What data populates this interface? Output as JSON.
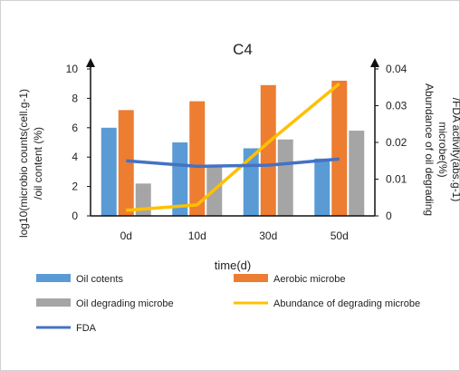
{
  "chart_data": {
    "type": "bar",
    "title": "C4",
    "categories": [
      "0d",
      "10d",
      "30d",
      "50d"
    ],
    "xlabel": "time(d)",
    "ylabel_lines": [
      "log10(microbio counts(cell.g-1)",
      "/oil content (%)"
    ],
    "y2label_lines": [
      "Abundance of oil degrading",
      "microbe(%)",
      "/FDA activity(abs.g-1)"
    ],
    "ylim": [
      0,
      10
    ],
    "y_ticks": [
      "0",
      "2",
      "4",
      "6",
      "8",
      "10"
    ],
    "y2lim": [
      0,
      0.04
    ],
    "y2_ticks": [
      "0",
      "0.01",
      "0.02",
      "0.03",
      "0.04"
    ],
    "series": [
      {
        "name": "Oil cotents",
        "kind": "bar",
        "axis": "left",
        "color": "#5B9BD5",
        "values": [
          6.0,
          5.0,
          4.6,
          3.9
        ]
      },
      {
        "name": "Aerobic microbe",
        "kind": "bar",
        "axis": "left",
        "color": "#ED7D31",
        "values": [
          7.2,
          7.8,
          8.9,
          9.2
        ]
      },
      {
        "name": "Oil degrading microbe",
        "kind": "bar",
        "axis": "left",
        "color": "#A5A5A5",
        "values": [
          2.2,
          3.3,
          5.2,
          5.8
        ]
      },
      {
        "name": "Abundance of degrading microbe",
        "kind": "line",
        "axis": "right",
        "color": "#FFC000",
        "values": [
          0.0015,
          0.003,
          0.02,
          0.036
        ]
      },
      {
        "name": "FDA",
        "kind": "line",
        "axis": "right",
        "color": "#4472C4",
        "values": [
          0.015,
          0.0135,
          0.0138,
          0.0155
        ]
      }
    ],
    "grid": false,
    "legend_position": "bottom"
  }
}
